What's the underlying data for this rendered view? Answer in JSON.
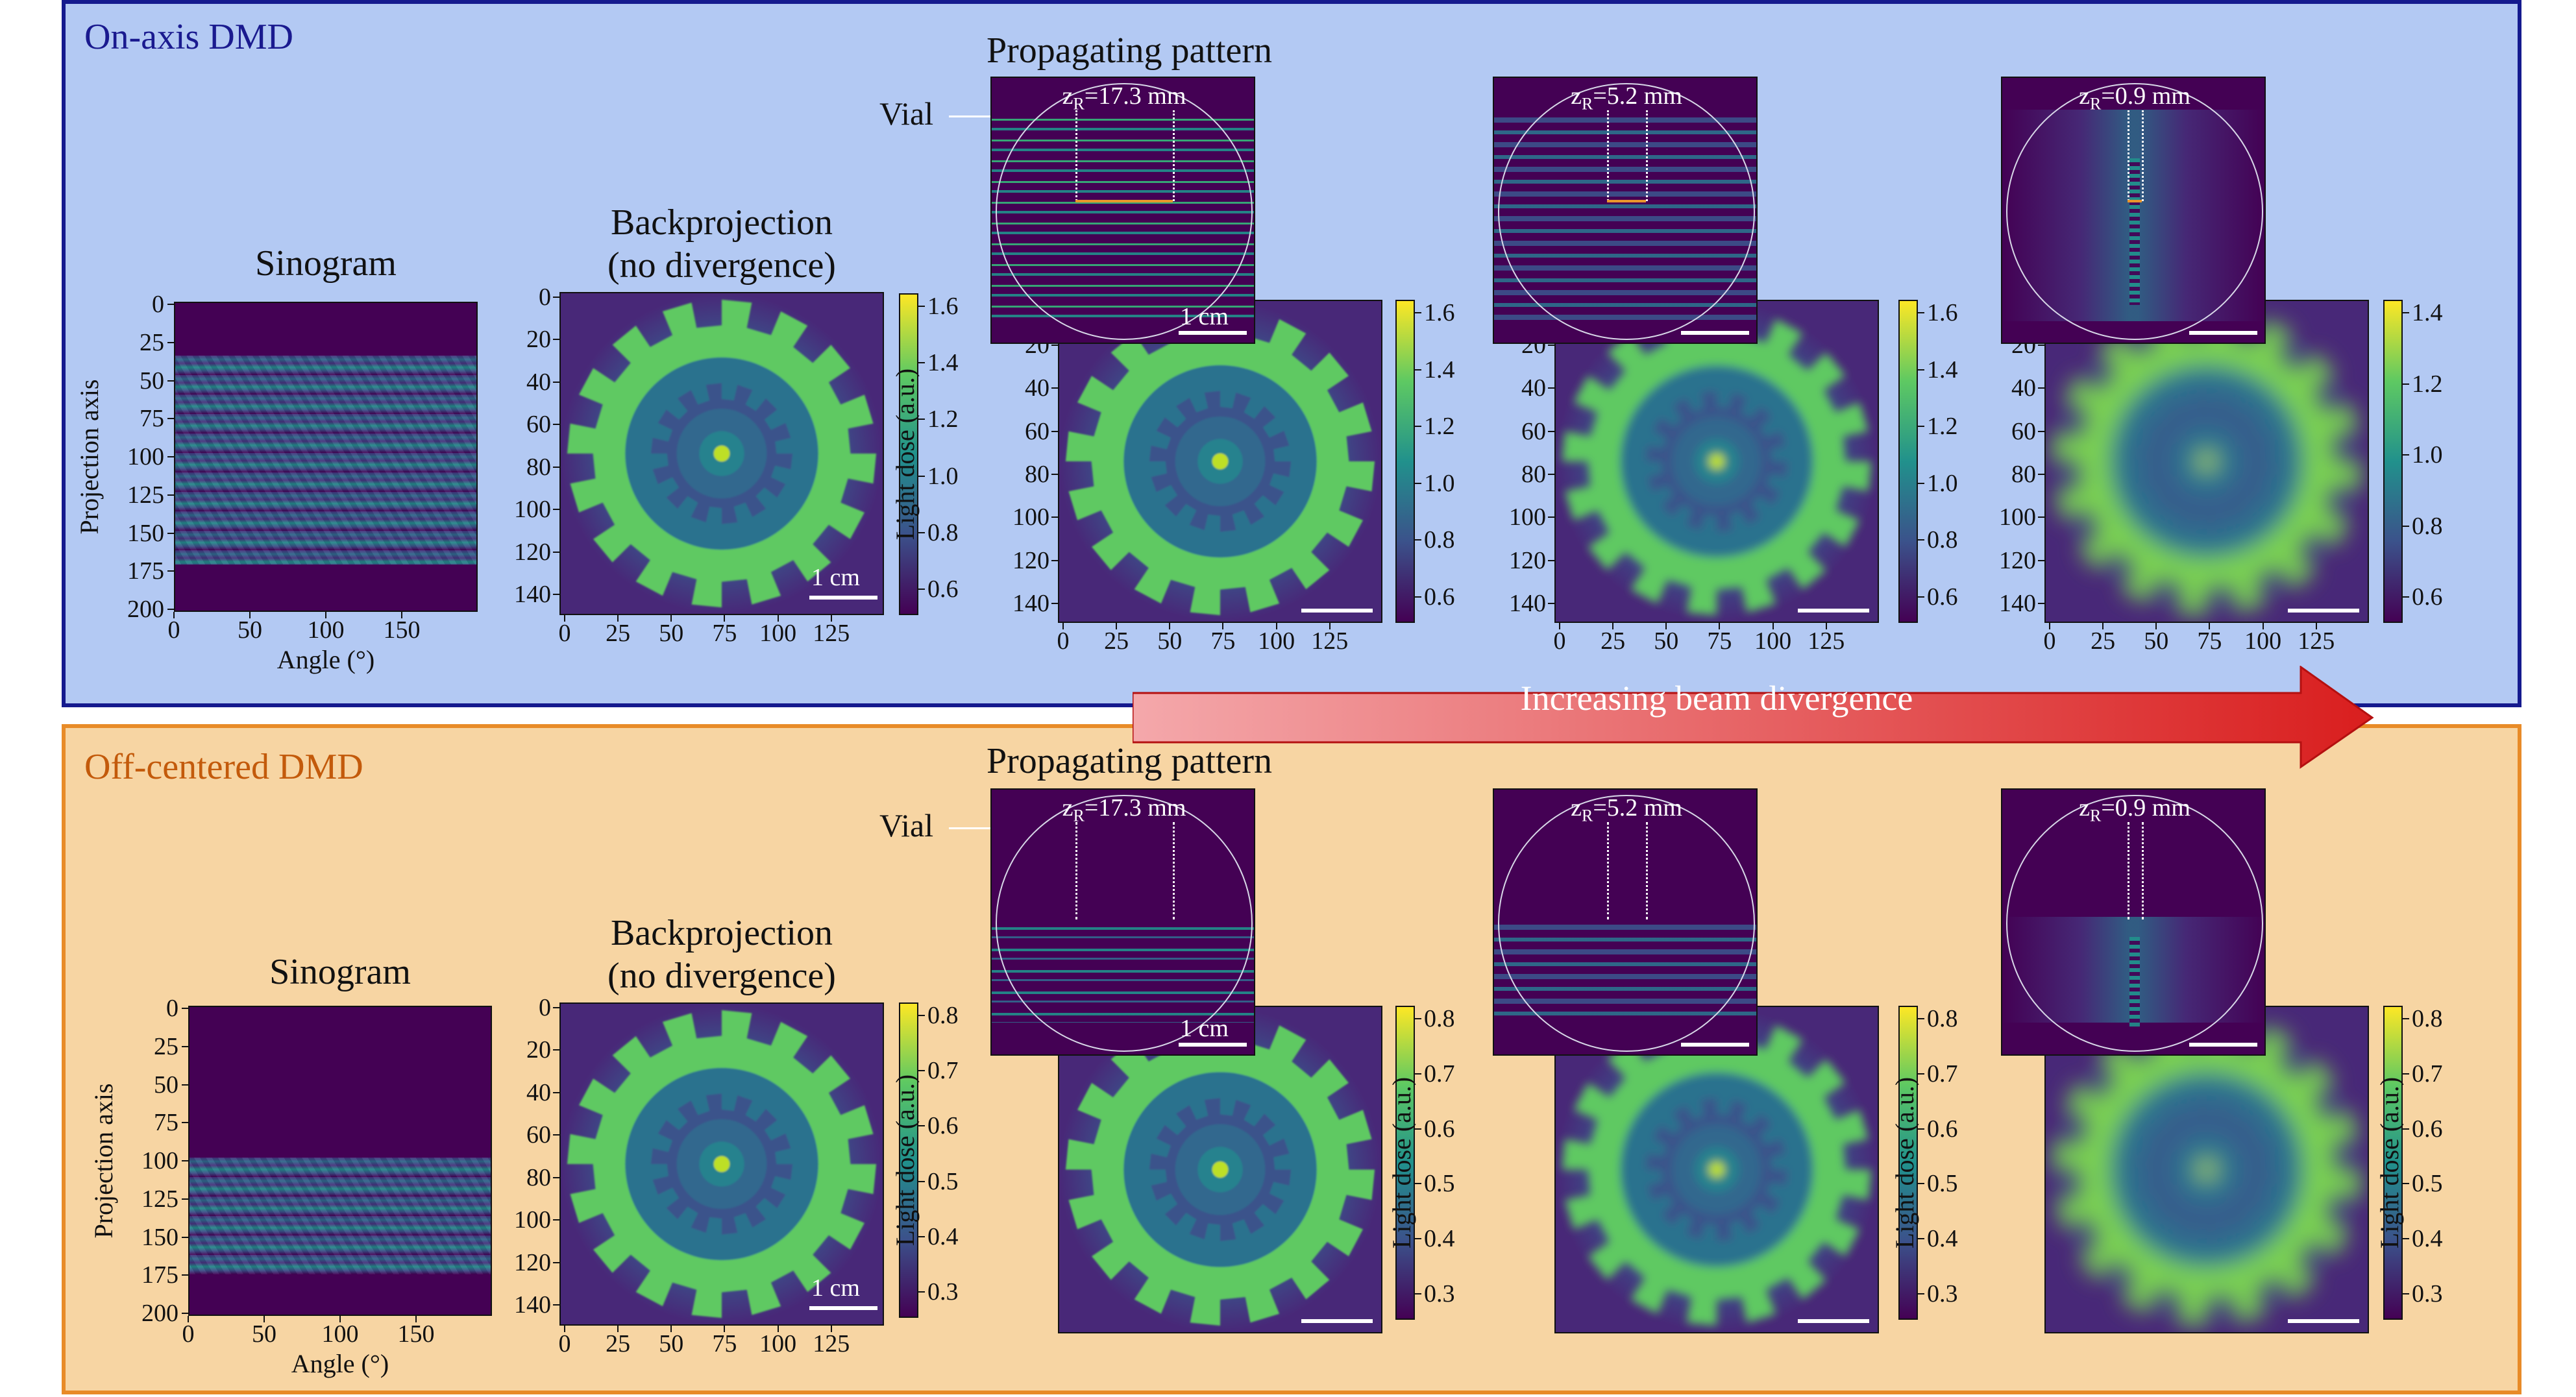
{
  "colors": {
    "top_bg": "#b3c9f3",
    "top_border": "#151a8e",
    "top_title": "#1a1a8f",
    "bottom_bg": "#f7d5a3",
    "bottom_border": "#e88b28",
    "bottom_title": "#c35a0b",
    "arrow_start": "#f4a8ab",
    "arrow_end": "#d91e1e"
  },
  "panels": [
    {
      "id": "top",
      "title": "On-axis DMD",
      "sinogram": {
        "title": "Sinogram",
        "ylabel": "Projection axis",
        "xlabel": "Angle (°)",
        "yticks": [
          "0",
          "25",
          "50",
          "75",
          "100",
          "125",
          "150",
          "175",
          "200"
        ],
        "xticks": [
          "0",
          "50",
          "100",
          "150"
        ],
        "band": [
          0.17,
          0.85
        ]
      },
      "backprojection": {
        "title_line1": "Backprojection",
        "title_line2": "(no divergence)",
        "xticks": [
          "0",
          "25",
          "50",
          "75",
          "100",
          "125"
        ],
        "yticks": [
          "0",
          "20",
          "40",
          "60",
          "80",
          "100",
          "120",
          "140"
        ],
        "scalebar": "1 cm",
        "cbar_ticks": [
          "0.6",
          "0.8",
          "1.0",
          "1.2",
          "1.4",
          "1.6"
        ],
        "cbar_label": "Light dose (a.u.)"
      },
      "propagating_title": "Propagating pattern",
      "vial_label": "Vial",
      "columns": [
        {
          "zr": "17.3 mm",
          "scalebar": "1 cm",
          "cbar_ticks": [
            "0.6",
            "0.8",
            "1.0",
            "1.2",
            "1.4",
            "1.6"
          ],
          "style": "sharp"
        },
        {
          "zr": "5.2 mm",
          "scalebar": "",
          "cbar_ticks": [
            "0.6",
            "0.8",
            "1.0",
            "1.2",
            "1.4",
            "1.6"
          ],
          "style": "mid"
        },
        {
          "zr": "0.9 mm",
          "scalebar": "",
          "cbar_ticks": [
            "0.6",
            "0.8",
            "1.0",
            "1.2",
            "1.4"
          ],
          "style": "blur"
        }
      ],
      "axis_xticks": [
        "0",
        "25",
        "50",
        "75",
        "100",
        "125"
      ],
      "axis_yticks": [
        "20",
        "40",
        "60",
        "80",
        "100",
        "120",
        "140"
      ]
    },
    {
      "id": "bottom",
      "title": "Off-centered DMD",
      "sinogram": {
        "title": "Sinogram",
        "ylabel": "Projection axis",
        "xlabel": "Angle (°)",
        "yticks": [
          "0",
          "25",
          "50",
          "75",
          "100",
          "125",
          "150",
          "175",
          "200"
        ],
        "xticks": [
          "0",
          "50",
          "100",
          "150"
        ],
        "band": [
          0.49,
          0.87
        ]
      },
      "backprojection": {
        "title_line1": "Backprojection",
        "title_line2": "(no divergence)",
        "xticks": [
          "0",
          "25",
          "50",
          "75",
          "100",
          "125"
        ],
        "yticks": [
          "0",
          "20",
          "40",
          "60",
          "80",
          "100",
          "120",
          "140"
        ],
        "scalebar": "1 cm",
        "cbar_ticks": [
          "0.3",
          "0.4",
          "0.5",
          "0.6",
          "0.7",
          "0.8"
        ],
        "cbar_label": "Light dose (a.u.)"
      },
      "propagating_title": "Propagating pattern",
      "vial_label": "Vial",
      "columns": [
        {
          "zr": "17.3 mm",
          "scalebar": "1 cm",
          "cbar_ticks": [
            "0.3",
            "0.4",
            "0.5",
            "0.6",
            "0.7",
            "0.8"
          ],
          "cbar_label": "Light dose (a.u.)",
          "style": "sharp"
        },
        {
          "zr": "5.2 mm",
          "scalebar": "",
          "cbar_ticks": [
            "0.3",
            "0.4",
            "0.5",
            "0.6",
            "0.7",
            "0.8"
          ],
          "cbar_label": "Light dose (a.u.)",
          "style": "mid"
        },
        {
          "zr": "0.9 mm",
          "scalebar": "",
          "cbar_ticks": [
            "0.3",
            "0.4",
            "0.5",
            "0.6",
            "0.7",
            "0.8"
          ],
          "cbar_label": "Light dose (a.u.)",
          "style": "blur"
        }
      ]
    }
  ],
  "arrow_label": "Increasing beam divergence",
  "zr_prefix": "z",
  "zr_sub": "R"
}
